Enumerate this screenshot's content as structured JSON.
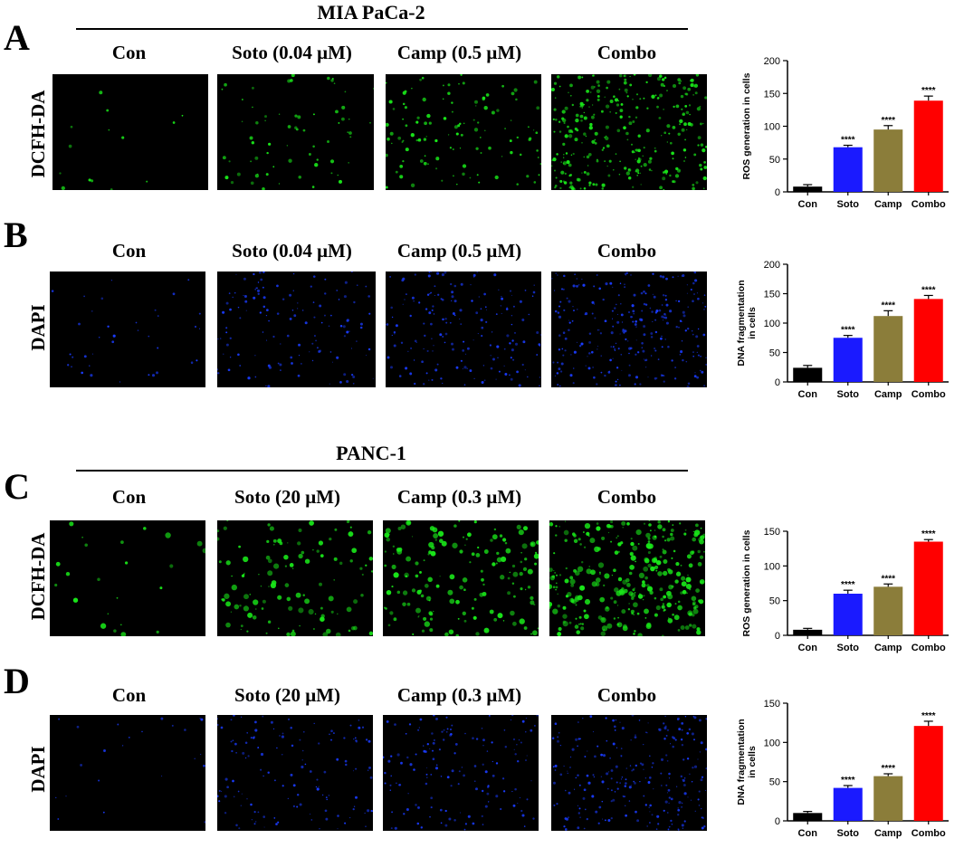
{
  "colors": {
    "con": "#000000",
    "soto": "#1a1aff",
    "camp": "#8b7d3a",
    "combo": "#ff0000",
    "dcfh_fluor": "#19e619",
    "dapi_fluor": "#1a3cff"
  },
  "panels": [
    {
      "letter": "A",
      "cell_line": "MIA PaCa-2",
      "stain": "DCFH-DA",
      "fluor": "green",
      "columns": [
        "Con",
        "Soto (0.04 μM)",
        "Camp (0.5 μM)",
        "Combo"
      ],
      "image_densities": [
        0.03,
        0.2,
        0.35,
        0.95
      ]
    },
    {
      "letter": "B",
      "cell_line": "",
      "stain": "DAPI",
      "fluor": "blue",
      "columns": [
        "Con",
        "Soto (0.04 μM)",
        "Camp (0.5 μM)",
        "Combo"
      ],
      "image_densities": [
        0.1,
        0.4,
        0.55,
        0.85
      ]
    },
    {
      "letter": "C",
      "cell_line": "PANC-1",
      "stain": "DCFH-DA",
      "fluor": "green",
      "columns": [
        "Con",
        "Soto (20 μM)",
        "Camp (0.3 μM)",
        "Combo"
      ],
      "image_densities": [
        0.06,
        0.35,
        0.5,
        0.95
      ]
    },
    {
      "letter": "D",
      "cell_line": "",
      "stain": "DAPI",
      "fluor": "blue",
      "columns": [
        "Con",
        "Soto (20 μM)",
        "Camp (0.3 μM)",
        "Combo"
      ],
      "image_densities": [
        0.06,
        0.4,
        0.45,
        0.75
      ]
    }
  ],
  "chart_data": [
    {
      "type": "bar",
      "categories": [
        "Con",
        "Soto",
        "Camp",
        "Combo"
      ],
      "values": [
        8,
        68,
        95,
        139
      ],
      "errors": [
        3,
        3,
        6,
        7
      ],
      "annotations": [
        "",
        "****",
        "****",
        "****"
      ],
      "ylabel": "ROS generation in cells",
      "ylim": [
        0,
        200
      ],
      "yticks": [
        0,
        50,
        100,
        150,
        200
      ]
    },
    {
      "type": "bar",
      "categories": [
        "Con",
        "Soto",
        "Camp",
        "Combo"
      ],
      "values": [
        24,
        75,
        112,
        141
      ],
      "errors": [
        4,
        4,
        9,
        6
      ],
      "annotations": [
        "",
        "****",
        "****",
        "****"
      ],
      "ylabel": "DNA fragmentation\nin cells",
      "ylim": [
        0,
        200
      ],
      "yticks": [
        0,
        50,
        100,
        150,
        200
      ]
    },
    {
      "type": "bar",
      "categories": [
        "Con",
        "Soto",
        "Camp",
        "Combo"
      ],
      "values": [
        8,
        60,
        70,
        135
      ],
      "errors": [
        2,
        5,
        4,
        3
      ],
      "annotations": [
        "",
        "****",
        "****",
        "****"
      ],
      "ylabel": "ROS generation in cells",
      "ylim": [
        0,
        150
      ],
      "yticks": [
        0,
        50,
        100,
        150
      ]
    },
    {
      "type": "bar",
      "categories": [
        "Con",
        "Soto",
        "Camp",
        "Combo"
      ],
      "values": [
        10,
        42,
        57,
        121
      ],
      "errors": [
        2,
        3,
        3,
        6
      ],
      "annotations": [
        "",
        "****",
        "****",
        "****"
      ],
      "ylabel": "DNA fragmentation\nin cells",
      "ylim": [
        0,
        150
      ],
      "yticks": [
        0,
        50,
        100,
        150
      ]
    }
  ]
}
